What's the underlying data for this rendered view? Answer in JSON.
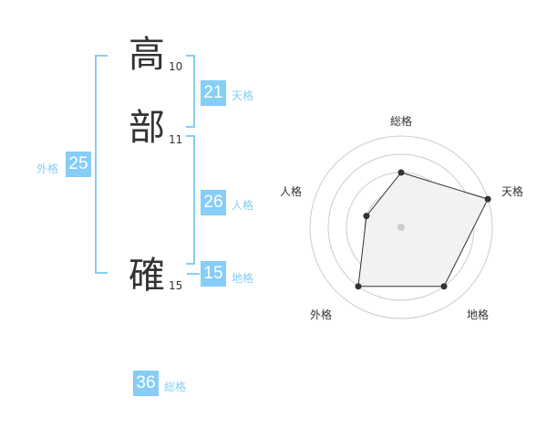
{
  "name": {
    "chars": [
      {
        "char": "高",
        "strokes": "10"
      },
      {
        "char": "部",
        "strokes": "11"
      },
      {
        "char": "確",
        "strokes": "15"
      }
    ]
  },
  "fortunes": {
    "tenkaku": {
      "value": "21",
      "label": "天格"
    },
    "jinkaku": {
      "value": "26",
      "label": "人格"
    },
    "chikaku": {
      "value": "15",
      "label": "地格"
    },
    "gaikaku": {
      "value": "25",
      "label": "外格"
    },
    "soukaku": {
      "value": "36",
      "label": "総格"
    }
  },
  "colors": {
    "accent": "#86cdf7",
    "text": "#333333",
    "fill": "#f2f2f2"
  },
  "chart_data": {
    "type": "radar",
    "axes": [
      "総格",
      "天格",
      "地格",
      "外格",
      "人格"
    ],
    "values": [
      3,
      5,
      4,
      4,
      2
    ],
    "range": [
      0,
      5
    ],
    "rings": 5
  }
}
